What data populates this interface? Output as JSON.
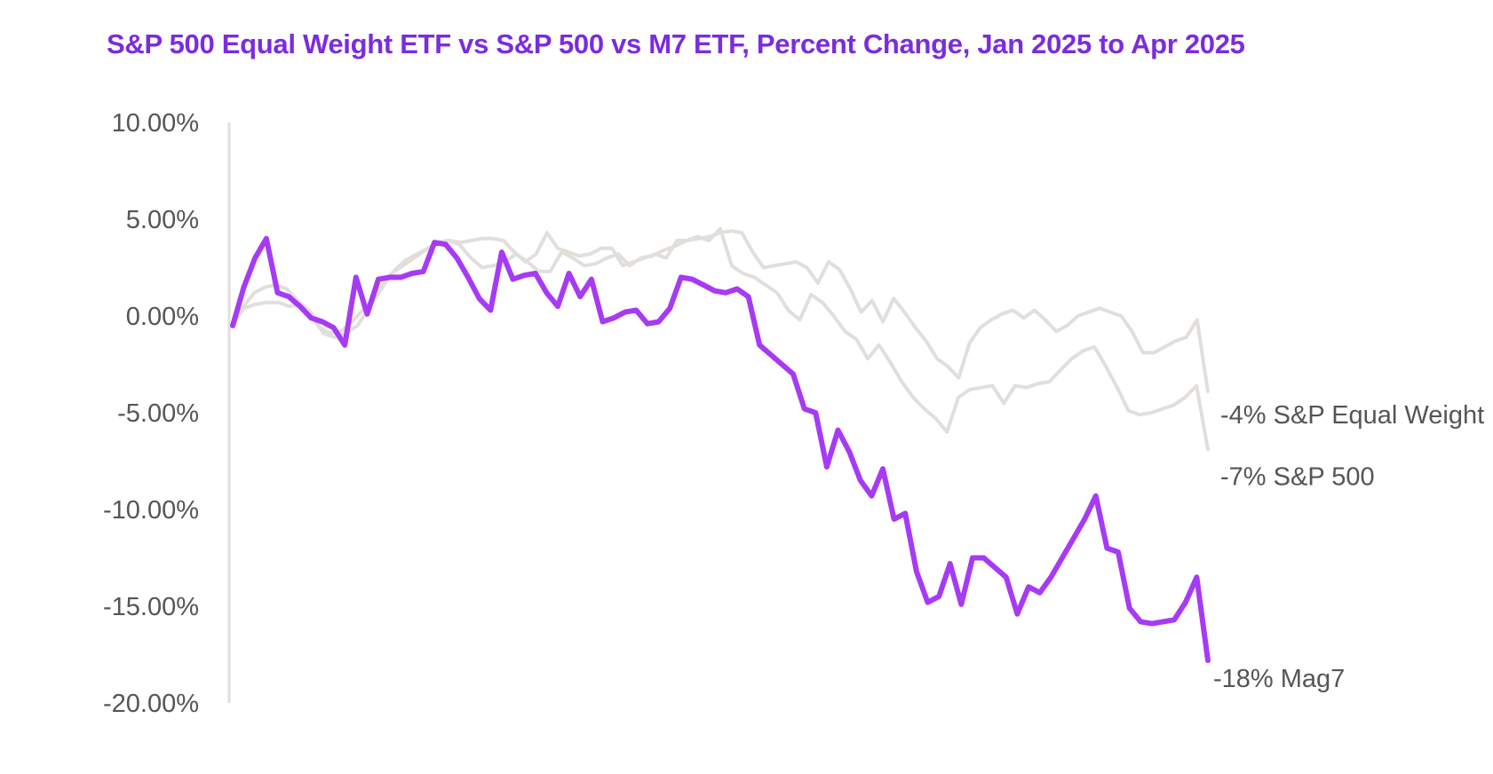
{
  "chart_data": {
    "type": "line",
    "title": "S&P 500 Equal Weight ETF vs S&P 500 vs M7 ETF, Percent Change, Jan 2025 to Apr 2025",
    "xlabel": "",
    "ylabel": "",
    "ylim": [
      -20,
      10
    ],
    "yticks": [
      {
        "value": 10,
        "label": "10.00%"
      },
      {
        "value": 5,
        "label": "5.00%"
      },
      {
        "value": 0,
        "label": "0.00%"
      },
      {
        "value": -5,
        "label": "-5.00%"
      },
      {
        "value": -10,
        "label": "-10.00%"
      },
      {
        "value": -15,
        "label": "-15.00%"
      },
      {
        "value": -20,
        "label": "-20.00%"
      }
    ],
    "grid": false,
    "legend": "none",
    "colors": {
      "title": "#7b2be0",
      "mag7": "#a63af5",
      "others": "#e2dedb",
      "axis": "#e2dedb",
      "text": "#555555"
    },
    "series": [
      {
        "name": "S&P Equal Weight",
        "end_label": "-4%  S&P Equal Weight",
        "color": "#e2dedb",
        "values": [
          -0.5,
          0.5,
          1.2,
          1.5,
          1.6,
          1.4,
          0.8,
          0.3,
          -0.6,
          -0.9,
          -0.8,
          -0.3,
          0.3,
          0.9,
          1.7,
          2.4,
          2.9,
          3.2,
          3.5,
          3.8,
          3.9,
          3.8,
          3.9,
          4.0,
          4.0,
          3.9,
          3.3,
          2.8,
          3.2,
          4.3,
          3.5,
          3.3,
          3.1,
          3.2,
          3.5,
          3.5,
          2.6,
          2.8,
          3.0,
          3.2,
          3.0,
          3.9,
          3.9,
          4.0,
          4.1,
          4.3,
          4.4,
          4.3,
          3.3,
          2.5,
          2.6,
          2.7,
          2.8,
          2.5,
          1.7,
          2.8,
          2.4,
          1.4,
          0.2,
          0.8,
          -0.3,
          0.9,
          0.2,
          -0.6,
          -1.3,
          -2.2,
          -2.6,
          -3.2,
          -1.4,
          -0.6,
          -0.2,
          0.1,
          0.3,
          -0.1,
          0.3,
          -0.2,
          -0.8,
          -0.5,
          0,
          0.2,
          0.4,
          0.2,
          0,
          -0.8,
          -1.9,
          -1.9,
          -1.6,
          -1.3,
          -1.1,
          -0.2,
          -3.9
        ]
      },
      {
        "name": "S&P 500",
        "end_label": "-7%  S&P 500",
        "color": "#e2dedb",
        "values": [
          -0.4,
          0.4,
          0.6,
          0.7,
          0.7,
          0.5,
          0.6,
          0.1,
          -0.9,
          -1.1,
          -0.9,
          -0.5,
          0.4,
          1.3,
          2.2,
          2.6,
          3.0,
          3.4,
          3.8,
          3.9,
          3.7,
          3.0,
          2.5,
          2.6,
          2.8,
          3.2,
          2.8,
          2.3,
          2.3,
          3.3,
          3.0,
          2.6,
          2.7,
          3.0,
          3.2,
          2.6,
          3.0,
          3.1,
          3.4,
          3.6,
          3.9,
          4.1,
          3.9,
          4.5,
          2.6,
          2.2,
          2.0,
          1.6,
          1.2,
          0.3,
          -0.2,
          1.1,
          0.7,
          0.0,
          -0.8,
          -1.2,
          -2.2,
          -1.5,
          -2.4,
          -3.4,
          -4.2,
          -4.8,
          -5.3,
          -6.0,
          -4.2,
          -3.8,
          -3.7,
          -3.6,
          -4.5,
          -3.6,
          -3.7,
          -3.5,
          -3.4,
          -2.8,
          -2.2,
          -1.8,
          -1.6,
          -2.6,
          -3.7,
          -4.9,
          -5.1,
          -5.0,
          -4.8,
          -4.6,
          -4.2,
          -3.6,
          -6.9
        ]
      },
      {
        "name": "Mag7",
        "end_label": "-18%  Mag7",
        "color": "#a63af5",
        "values": [
          -0.5,
          1.5,
          3.0,
          4.0,
          1.2,
          1.0,
          0.5,
          -0.1,
          -0.3,
          -0.6,
          -1.5,
          2.0,
          0.1,
          1.9,
          2.0,
          2.0,
          2.2,
          2.3,
          3.8,
          3.7,
          3.0,
          2.0,
          0.9,
          0.3,
          3.3,
          1.9,
          2.1,
          2.2,
          1.2,
          0.5,
          2.2,
          1.0,
          1.9,
          -0.3,
          -0.1,
          0.2,
          0.3,
          -0.4,
          -0.3,
          0.4,
          2.0,
          1.9,
          1.6,
          1.3,
          1.2,
          1.4,
          1.0,
          -1.5,
          -2.0,
          -2.5,
          -3.0,
          -4.8,
          -5.0,
          -7.8,
          -5.9,
          -7.0,
          -8.5,
          -9.3,
          -7.9,
          -10.5,
          -10.2,
          -13.2,
          -14.8,
          -14.5,
          -12.8,
          -14.9,
          -12.5,
          -12.5,
          -13.0,
          -13.5,
          -15.4,
          -14.0,
          -14.3,
          -13.5,
          -12.5,
          -11.5,
          -10.5,
          -9.3,
          -12.0,
          -12.2,
          -15.1,
          -15.8,
          -15.9,
          -15.8,
          -15.7,
          -14.8,
          -13.5,
          -17.8
        ]
      }
    ]
  }
}
